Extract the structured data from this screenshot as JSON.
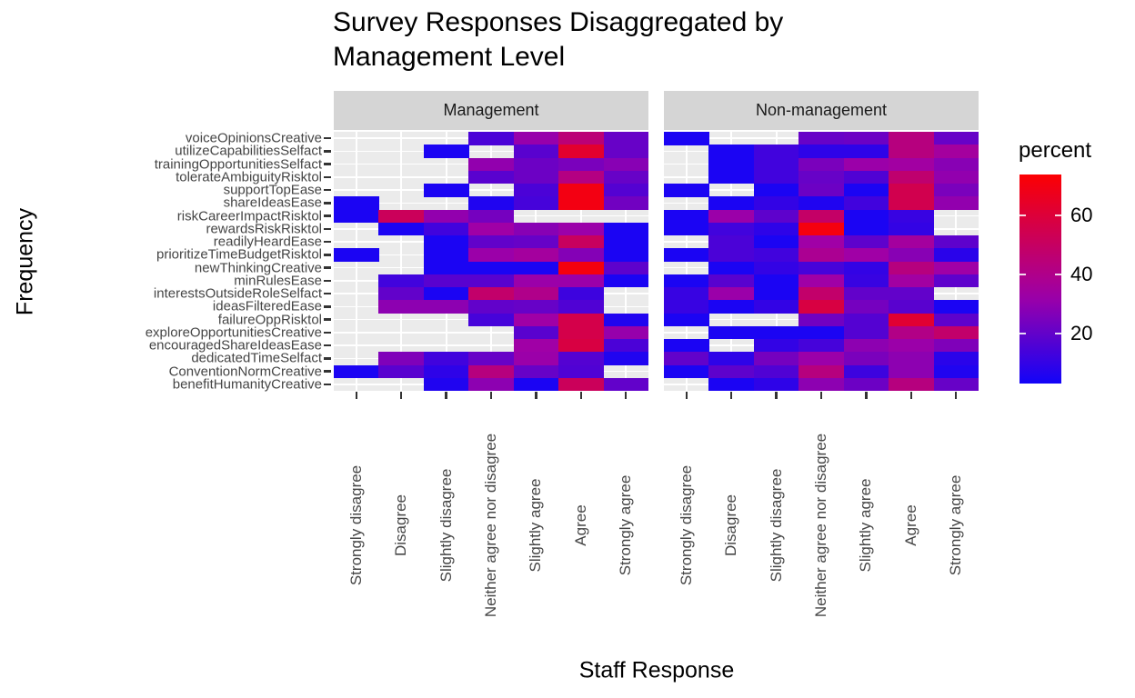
{
  "title": {
    "line1": "Survey Responses Disaggregated by",
    "line2": "Management Level"
  },
  "chart_data": {
    "type": "heatmap",
    "title": "Survey Responses Disaggregated by Management Level",
    "xlabel": "Staff Response",
    "ylabel": "Frequency",
    "grid": true,
    "legend_position": "right",
    "na_color": "#ebebeb",
    "x_categories": [
      "Strongly disagree",
      "Disagree",
      "Slightly disagree",
      "Neither agree nor disagree",
      "Slightly agree",
      "Agree",
      "Strongly agree"
    ],
    "y_categories": [
      "voiceOpinionsCreative",
      "utilizeCapabilitiesSelfact",
      "trainingOpportunitiesSelfact",
      "tolerateAmbiguityRisktol",
      "supportTopEase",
      "shareIdeasEase",
      "riskCareerImpactRisktol",
      "rewardsRiskRisktol",
      "readilyHeardEase",
      "prioritizeTimeBudgetRisktol",
      "newThinkingCreative",
      "minRulesEase",
      "interestsOutsideRoleSelfact",
      "ideasFilteredEase",
      "failureOppRisktol",
      "exploreOpportunitiesCreative",
      "encouragedShareIdeasEase",
      "dedicatedTimeSelfact",
      "ConventionNormCreative",
      "benefitHumanityCreative"
    ],
    "legend": {
      "title": "percent",
      "ticks": [
        20,
        40,
        60
      ],
      "min": 3,
      "max": 74,
      "low_color": "#1204F8",
      "mid_color": "#A000A6",
      "mid_value": 33,
      "high_color": "#FC0002"
    },
    "facets": [
      {
        "label": "Management",
        "values": [
          [
            null,
            null,
            null,
            15,
            31,
            45,
            21
          ],
          [
            null,
            null,
            5,
            null,
            18,
            63,
            21
          ],
          [
            null,
            null,
            null,
            30,
            22,
            25,
            28
          ],
          [
            null,
            null,
            null,
            18,
            22,
            42,
            21
          ],
          [
            null,
            null,
            5,
            null,
            15,
            70,
            17
          ],
          [
            5,
            null,
            null,
            6,
            14,
            70,
            23
          ],
          [
            5,
            52,
            30,
            24,
            null,
            null,
            null
          ],
          [
            null,
            5,
            13,
            33,
            28,
            32,
            5
          ],
          [
            null,
            null,
            5,
            20,
            21,
            51,
            5
          ],
          [
            5,
            null,
            5,
            32,
            35,
            27,
            5
          ],
          [
            null,
            null,
            5,
            5,
            5,
            71,
            19
          ],
          [
            null,
            13,
            18,
            18,
            32,
            32,
            5
          ],
          [
            null,
            20,
            5,
            48,
            40,
            12,
            null
          ],
          [
            null,
            29,
            29,
            20,
            21,
            16,
            null
          ],
          [
            null,
            null,
            null,
            14,
            33,
            56,
            6
          ],
          [
            null,
            null,
            null,
            null,
            18,
            56,
            31
          ],
          [
            null,
            null,
            null,
            null,
            33,
            58,
            15
          ],
          [
            null,
            26,
            13,
            21,
            32,
            17,
            6
          ],
          [
            5,
            18,
            9,
            43,
            21,
            16,
            null
          ],
          [
            null,
            null,
            6,
            29,
            5,
            52,
            20
          ]
        ]
      },
      {
        "label": "Non-management",
        "values": [
          [
            5,
            null,
            null,
            21,
            22,
            43,
            21
          ],
          [
            null,
            5,
            13,
            9,
            9,
            43,
            35
          ],
          [
            null,
            5,
            13,
            25,
            32,
            34,
            28
          ],
          [
            null,
            5,
            13,
            21,
            16,
            47,
            30
          ],
          [
            5,
            null,
            5,
            22,
            5,
            55,
            25
          ],
          [
            null,
            5,
            10,
            6,
            13,
            55,
            30
          ],
          [
            5,
            32,
            19,
            49,
            5,
            11,
            null
          ],
          [
            5,
            13,
            9,
            71,
            5,
            10,
            null
          ],
          [
            null,
            15,
            5,
            33,
            19,
            35,
            19
          ],
          [
            5,
            15,
            13,
            38,
            33,
            28,
            8
          ],
          [
            null,
            5,
            10,
            14,
            10,
            43,
            33
          ],
          [
            5,
            18,
            5,
            33,
            11,
            34,
            19
          ],
          [
            11,
            32,
            5,
            48,
            20,
            20,
            null
          ],
          [
            11,
            5,
            10,
            58,
            24,
            18,
            5
          ],
          [
            5,
            null,
            null,
            23,
            17,
            62,
            19
          ],
          [
            null,
            5,
            5,
            5,
            17,
            41,
            48
          ],
          [
            5,
            null,
            10,
            14,
            29,
            32,
            26
          ],
          [
            20,
            9,
            24,
            32,
            25,
            29,
            8
          ],
          [
            5,
            19,
            16,
            43,
            12,
            29,
            6
          ],
          [
            null,
            5,
            9,
            29,
            22,
            43,
            21
          ]
        ]
      }
    ]
  }
}
